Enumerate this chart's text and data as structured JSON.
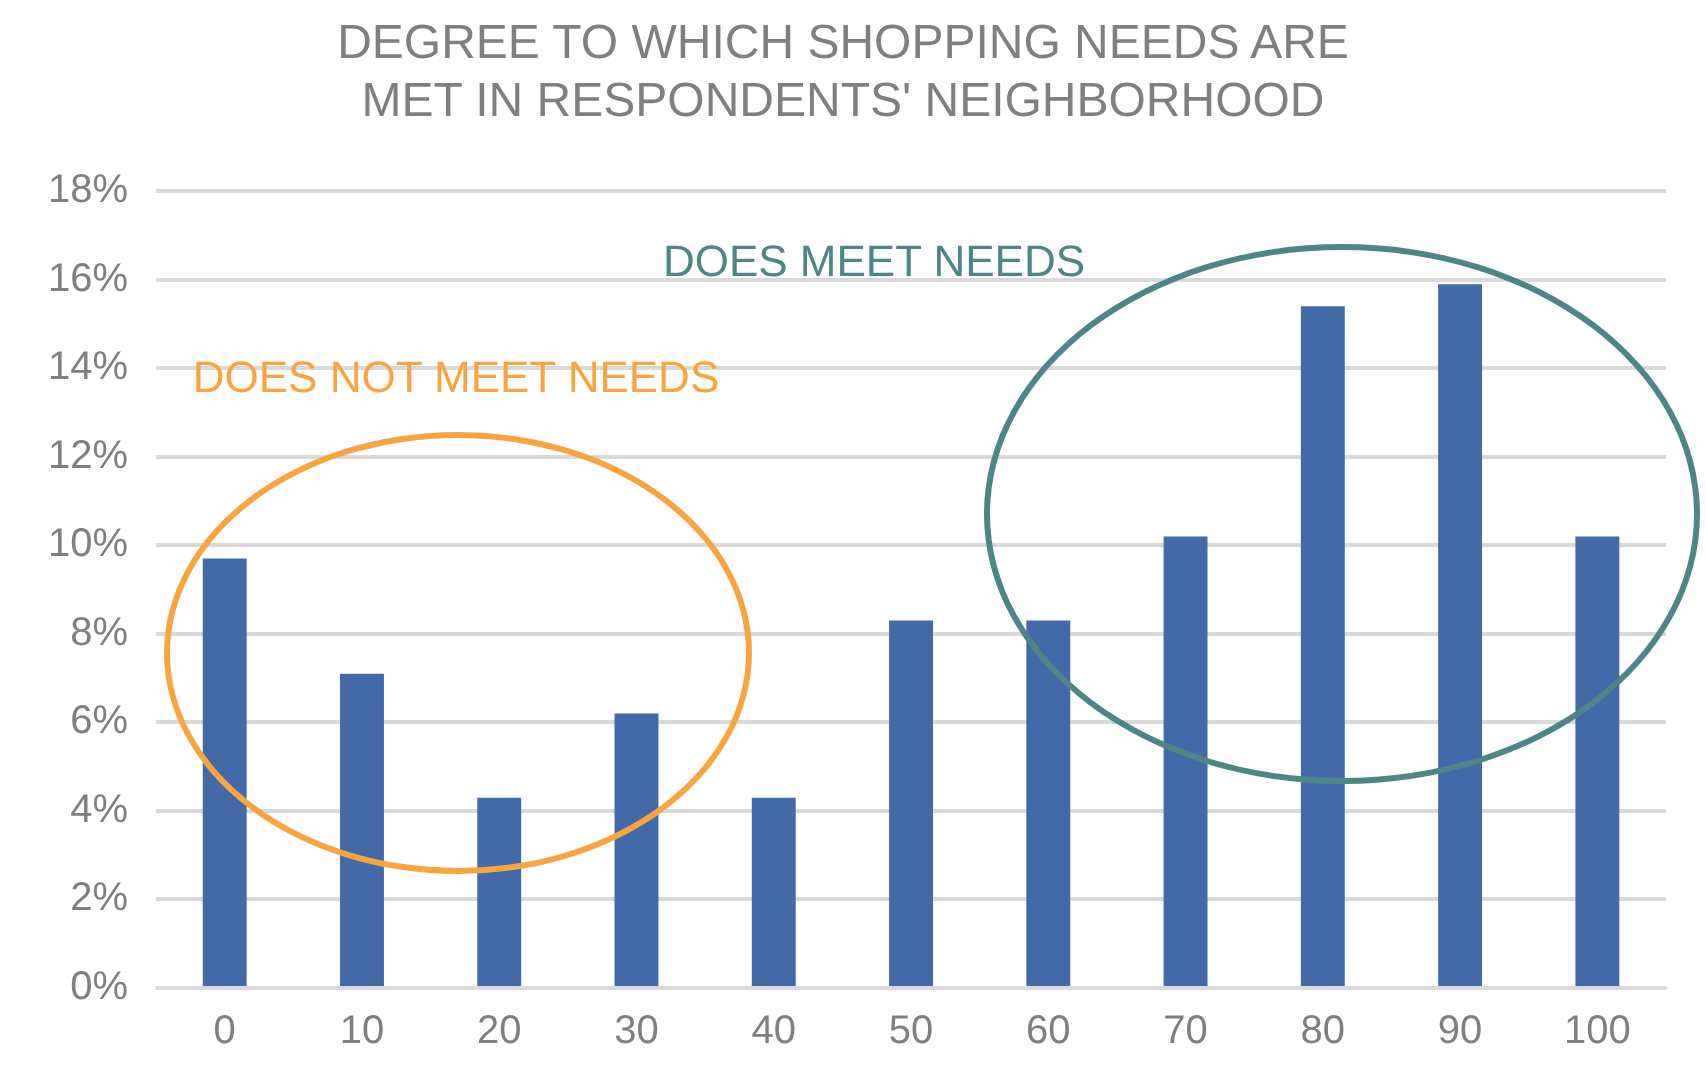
{
  "chart_data": {
    "type": "bar",
    "title": "DEGREE TO WHICH SHOPPING NEEDS ARE MET IN RESPONDENTS' NEIGHBORHOOD",
    "categories": [
      "0",
      "10",
      "20",
      "30",
      "40",
      "50",
      "60",
      "70",
      "80",
      "90",
      "100"
    ],
    "values": [
      9.7,
      7.1,
      4.3,
      6.2,
      4.3,
      8.3,
      8.3,
      10.2,
      15.4,
      15.9,
      10.2
    ],
    "color": "#426aa8",
    "ylim": [
      0,
      18
    ],
    "yticks": [
      {
        "value": 0,
        "label": "0%"
      },
      {
        "value": 2,
        "label": "2%"
      },
      {
        "value": 4,
        "label": "4%"
      },
      {
        "value": 6,
        "label": "6%"
      },
      {
        "value": 8,
        "label": "8%"
      },
      {
        "value": 10,
        "label": "10%"
      },
      {
        "value": 12,
        "label": "12%"
      },
      {
        "value": 14,
        "label": "14%"
      },
      {
        "value": 16,
        "label": "16%"
      },
      {
        "value": 18,
        "label": "18%"
      }
    ],
    "grid": "y",
    "legend": false,
    "annotations": [
      "DOES MEET NEEDS",
      "DOES NOT MEET NEEDS"
    ]
  }
}
